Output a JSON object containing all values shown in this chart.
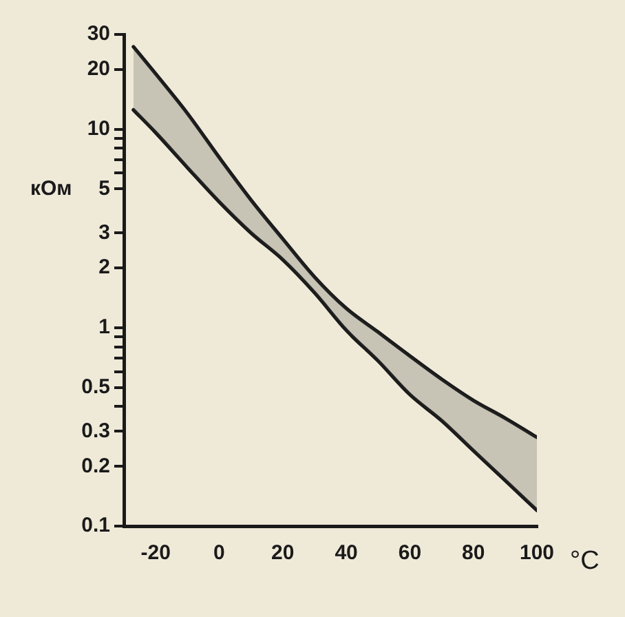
{
  "chart_data": {
    "type": "line",
    "xlabel": "°C",
    "ylabel": "кОм",
    "log": "y",
    "grid": false,
    "legend": false,
    "marker": "none",
    "line_style": "solid",
    "xlim": [
      -30,
      100
    ],
    "xticks": [
      -20,
      0,
      20,
      40,
      60,
      80,
      100
    ],
    "ylim": [
      0.1,
      30
    ],
    "yticks": [
      0.1,
      0.2,
      0.3,
      {
        "value": 0.4,
        "label": null
      },
      0.5,
      {
        "value": 0.6,
        "label": null
      },
      {
        "value": 0.7,
        "label": null
      },
      {
        "value": 0.8,
        "label": null
      },
      {
        "value": 0.9,
        "label": null
      },
      1,
      2,
      3,
      5,
      {
        "value": 6,
        "label": null
      },
      {
        "value": 7,
        "label": null
      },
      {
        "value": 8,
        "label": null
      },
      {
        "value": 9,
        "label": null
      },
      10,
      20,
      30
    ],
    "series": [
      {
        "color": "#1a1a1a",
        "x": [
          -27,
          -20,
          -10,
          0,
          10,
          20,
          30,
          40,
          50,
          60,
          70,
          80,
          90,
          100
        ],
        "values": [
          26,
          19,
          12,
          7.2,
          4.4,
          2.8,
          1.8,
          1.25,
          0.95,
          0.72,
          0.55,
          0.43,
          0.35,
          0.28
        ],
        "lower": [
          12.5,
          9.6,
          6.4,
          4.3,
          3.0,
          2.2,
          1.5,
          0.97,
          0.68,
          0.46,
          0.34,
          0.24,
          0.17,
          0.12
        ],
        "upper": [
          26,
          19,
          12,
          7.2,
          4.4,
          2.8,
          1.8,
          1.25,
          0.95,
          0.72,
          0.55,
          0.43,
          0.35,
          0.28
        ]
      },
      {
        "color": "#1a1a1a",
        "x": [
          -27,
          -20,
          -10,
          0,
          10,
          20,
          30,
          40,
          50,
          60,
          70,
          80,
          90,
          100
        ],
        "values": [
          12.5,
          9.6,
          6.4,
          4.3,
          3.0,
          2.2,
          1.5,
          0.97,
          0.68,
          0.46,
          0.34,
          0.24,
          0.17,
          0.12
        ]
      }
    ]
  }
}
